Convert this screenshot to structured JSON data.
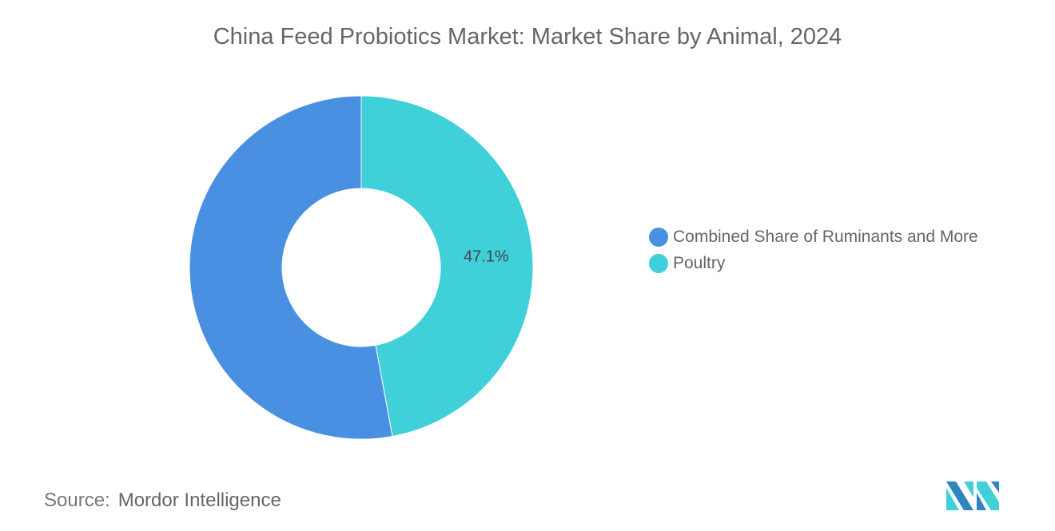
{
  "chart_data": {
    "type": "pie",
    "style": "donut",
    "title": "China Feed Probiotics Market: Market Share by Animal, 2024",
    "slices": [
      {
        "label": "Poultry",
        "value": 47.1,
        "data_label": "47.1%",
        "color": "#40D0DA"
      },
      {
        "label": "Combined Share of Ruminants and More",
        "value": 52.9,
        "data_label": "",
        "color": "#4A90E2"
      }
    ],
    "legend": {
      "placement": "right",
      "entries": [
        {
          "label": "Combined Share of Ruminants and More",
          "color": "#4A90E2"
        },
        {
          "label": "Poultry",
          "color": "#40D0DA"
        }
      ]
    }
  },
  "source": {
    "label": "Source:",
    "value": "Mordor Intelligence"
  },
  "logo": {
    "text": "Mordor Intelligence",
    "colors": [
      "#2E86C1",
      "#40D0DA"
    ]
  }
}
